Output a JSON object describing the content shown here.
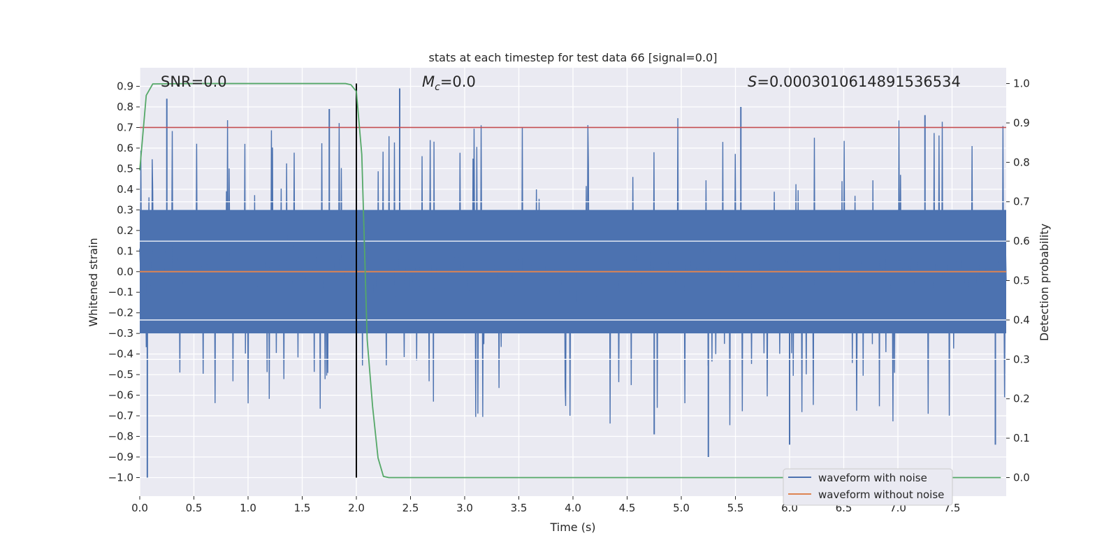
{
  "chart_data": {
    "type": "line",
    "title": "stats at each timestep for test data 66 [signal=0.0]",
    "xlabel": "Time (s)",
    "ylabel": "Whitened strain",
    "y2label": "Detection probability",
    "xlim": [
      0.0,
      8.0
    ],
    "ylim": [
      -1.09,
      0.99
    ],
    "y2lim": [
      -0.047,
      1.04
    ],
    "xticks": [
      0.0,
      0.5,
      1.0,
      1.5,
      2.0,
      2.5,
      3.0,
      3.5,
      4.0,
      4.5,
      5.0,
      5.5,
      6.0,
      6.5,
      7.0,
      7.5
    ],
    "xtick_labels": [
      "0.0",
      "0.5",
      "1.0",
      "1.5",
      "2.0",
      "2.5",
      "3.0",
      "3.5",
      "4.0",
      "4.5",
      "5.0",
      "5.5",
      "6.0",
      "6.5",
      "7.0",
      "7.5"
    ],
    "yticks": [
      0.9,
      0.8,
      0.7,
      0.6,
      0.5,
      0.4,
      0.3,
      0.2,
      0.1,
      0.0,
      -0.1,
      -0.2,
      -0.3,
      -0.4,
      -0.5,
      -0.6,
      -0.7,
      -0.8,
      -0.9,
      -1.0
    ],
    "ytick_labels": [
      "0.9",
      "0.8",
      "0.7",
      "0.6",
      "0.5",
      "0.4",
      "0.3",
      "0.2",
      "0.1",
      "0.0",
      "−0.1",
      "−0.2",
      "−0.3",
      "−0.4",
      "−0.5",
      "−0.6",
      "−0.7",
      "−0.8",
      "−0.9",
      "−1.0"
    ],
    "y2ticks": [
      1.0,
      0.9,
      0.8,
      0.7,
      0.6,
      0.5,
      0.4,
      0.3,
      0.2,
      0.1,
      0.0
    ],
    "y2tick_labels": [
      "1.0",
      "0.9",
      "0.8",
      "0.7",
      "0.6",
      "0.5",
      "0.4",
      "0.3",
      "0.2",
      "0.1",
      "0.0"
    ],
    "grid": true,
    "legend_position": "bottom-right",
    "series": [
      {
        "name": "waveform with noise",
        "color": "#4c72b0",
        "axis": "left",
        "description_stats": {
          "core_abs": 0.3,
          "typical_max": 0.6,
          "typical_min": -0.45,
          "extreme_max": 0.89,
          "extreme_min": -1.0,
          "samples": 1600,
          "x_end": 8.0
        }
      },
      {
        "name": "waveform without noise",
        "color": "#dd8452",
        "axis": "left",
        "x": [
          0.0,
          8.0
        ],
        "y": [
          0.0,
          0.0
        ]
      },
      {
        "name": "detection probability",
        "color": "#55a868",
        "axis": "right",
        "x": [
          0.0,
          0.06,
          0.12,
          0.5,
          1.0,
          1.5,
          1.9,
          1.95,
          2.0,
          2.05,
          2.1,
          2.15,
          2.2,
          2.25,
          2.3,
          3.0,
          5.0,
          7.95
        ],
        "y": [
          0.78,
          0.97,
          0.999,
          1.0,
          1.0,
          1.0,
          1.0,
          0.997,
          0.98,
          0.82,
          0.35,
          0.18,
          0.05,
          0.003,
          0.0,
          0.0,
          0.0,
          0.0
        ]
      }
    ],
    "hlines": [
      {
        "y": 0.7,
        "color": "#c44e52",
        "axis": "left"
      }
    ],
    "vlines": [
      {
        "x": 2.0,
        "y_from": -1.0,
        "y_to": 0.9,
        "color": "#000000"
      }
    ],
    "annotations": {
      "snr": "SNR=0.0",
      "mc_symbol": "M",
      "mc_subscript": "c",
      "mc_value": "=0.0",
      "s_symbol": "S",
      "s_value": "=0.0003010614891536534"
    },
    "legend": [
      {
        "label": "waveform with noise",
        "color": "#4c72b0"
      },
      {
        "label": "waveform without noise",
        "color": "#dd8452"
      }
    ],
    "colors": {
      "plot_bg": "#eaeaf2",
      "grid": "#ffffff",
      "text": "#262626",
      "legend_bg": "#eaeaf2",
      "legend_border": "#cccccc"
    }
  }
}
